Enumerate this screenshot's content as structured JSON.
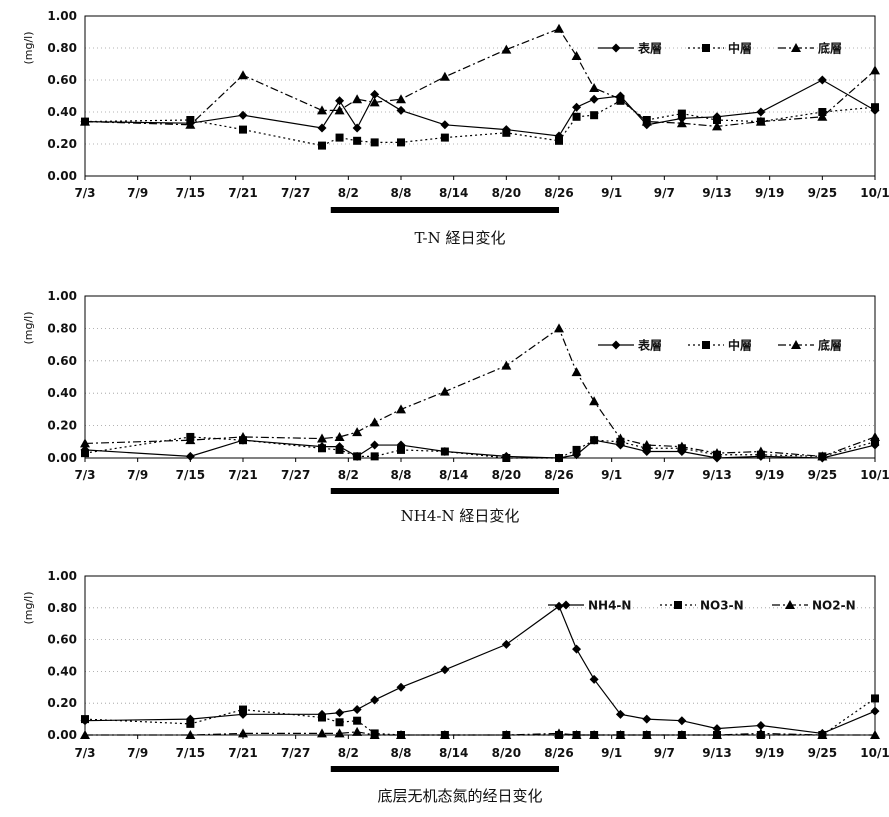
{
  "x_labels": [
    "7/3",
    "7/9",
    "7/15",
    "7/21",
    "7/27",
    "8/2",
    "8/8",
    "8/14",
    "8/20",
    "8/26",
    "9/1",
    "9/7",
    "9/13",
    "9/19",
    "9/25",
    "10/1"
  ],
  "chart_data": [
    {
      "type": "line",
      "caption": "T-N 経日変化",
      "ylabel": "(mg/l)",
      "ylim": [
        0,
        1.0
      ],
      "yticks": [
        "0.00",
        "0.20",
        "0.40",
        "0.60",
        "0.80",
        "1.00"
      ],
      "legend_position": "top-right",
      "highlight_period": [
        "7/31",
        "8/26"
      ],
      "series": [
        {
          "name": "表層",
          "style": "solid",
          "marker": "diamond",
          "points": [
            [
              "7/3",
              0.34
            ],
            [
              "7/15",
              0.33
            ],
            [
              "7/21",
              0.38
            ],
            [
              "7/30",
              0.3
            ],
            [
              "8/1",
              0.47
            ],
            [
              "8/3",
              0.3
            ],
            [
              "8/5",
              0.51
            ],
            [
              "8/8",
              0.41
            ],
            [
              "8/13",
              0.32
            ],
            [
              "8/20",
              0.29
            ],
            [
              "8/26",
              0.25
            ],
            [
              "8/28",
              0.43
            ],
            [
              "8/30",
              0.48
            ],
            [
              "9/2",
              0.5
            ],
            [
              "9/5",
              0.32
            ],
            [
              "9/9",
              0.36
            ],
            [
              "9/13",
              0.37
            ],
            [
              "9/18",
              0.4
            ],
            [
              "9/25",
              0.6
            ],
            [
              "10/1",
              0.41
            ]
          ]
        },
        {
          "name": "中層",
          "style": "dotted",
          "marker": "square",
          "points": [
            [
              "7/3",
              0.34
            ],
            [
              "7/15",
              0.35
            ],
            [
              "7/21",
              0.29
            ],
            [
              "7/30",
              0.19
            ],
            [
              "8/1",
              0.24
            ],
            [
              "8/3",
              0.22
            ],
            [
              "8/5",
              0.21
            ],
            [
              "8/8",
              0.21
            ],
            [
              "8/13",
              0.24
            ],
            [
              "8/20",
              0.27
            ],
            [
              "8/26",
              0.22
            ],
            [
              "8/28",
              0.37
            ],
            [
              "8/30",
              0.38
            ],
            [
              "9/2",
              0.47
            ],
            [
              "9/5",
              0.35
            ],
            [
              "9/9",
              0.39
            ],
            [
              "9/13",
              0.35
            ],
            [
              "9/18",
              0.34
            ],
            [
              "9/25",
              0.4
            ],
            [
              "10/1",
              0.43
            ]
          ]
        },
        {
          "name": "底層",
          "style": "dashdot",
          "marker": "triangle",
          "points": [
            [
              "7/3",
              0.34
            ],
            [
              "7/15",
              0.32
            ],
            [
              "7/21",
              0.63
            ],
            [
              "7/30",
              0.41
            ],
            [
              "8/1",
              0.41
            ],
            [
              "8/3",
              0.48
            ],
            [
              "8/5",
              0.46
            ],
            [
              "8/8",
              0.48
            ],
            [
              "8/13",
              0.62
            ],
            [
              "8/20",
              0.79
            ],
            [
              "8/26",
              0.92
            ],
            [
              "8/28",
              0.75
            ],
            [
              "8/30",
              0.55
            ],
            [
              "9/2",
              0.48
            ],
            [
              "9/5",
              0.34
            ],
            [
              "9/9",
              0.33
            ],
            [
              "9/13",
              0.31
            ],
            [
              "9/18",
              0.34
            ],
            [
              "9/25",
              0.37
            ],
            [
              "10/1",
              0.66
            ]
          ]
        }
      ]
    },
    {
      "type": "line",
      "caption": "NH4-N 経日変化",
      "ylabel": "(mg/l)",
      "ylim": [
        0,
        1.0
      ],
      "yticks": [
        "0.00",
        "0.20",
        "0.40",
        "0.60",
        "0.80",
        "1.00"
      ],
      "legend_position": "top-right",
      "highlight_period": [
        "7/31",
        "8/26"
      ],
      "series": [
        {
          "name": "表層",
          "style": "solid",
          "marker": "diamond",
          "points": [
            [
              "7/3",
              0.05
            ],
            [
              "7/15",
              0.01
            ],
            [
              "7/21",
              0.11
            ],
            [
              "7/30",
              0.07
            ],
            [
              "8/1",
              0.07
            ],
            [
              "8/3",
              0.01
            ],
            [
              "8/5",
              0.08
            ],
            [
              "8/8",
              0.08
            ],
            [
              "8/13",
              0.04
            ],
            [
              "8/20",
              0.01
            ],
            [
              "8/26",
              0.0
            ],
            [
              "8/28",
              0.02
            ],
            [
              "8/30",
              0.11
            ],
            [
              "9/2",
              0.08
            ],
            [
              "9/5",
              0.04
            ],
            [
              "9/9",
              0.04
            ],
            [
              "9/13",
              0.0
            ],
            [
              "9/18",
              0.01
            ],
            [
              "9/25",
              0.0
            ],
            [
              "10/1",
              0.08
            ]
          ]
        },
        {
          "name": "中層",
          "style": "dotted",
          "marker": "square",
          "points": [
            [
              "7/3",
              0.03
            ],
            [
              "7/15",
              0.13
            ],
            [
              "7/21",
              0.11
            ],
            [
              "7/30",
              0.06
            ],
            [
              "8/1",
              0.05
            ],
            [
              "8/3",
              0.01
            ],
            [
              "8/5",
              0.01
            ],
            [
              "8/8",
              0.05
            ],
            [
              "8/13",
              0.04
            ],
            [
              "8/20",
              0.0
            ],
            [
              "8/26",
              0.0
            ],
            [
              "8/28",
              0.05
            ],
            [
              "8/30",
              0.11
            ],
            [
              "9/2",
              0.1
            ],
            [
              "9/5",
              0.06
            ],
            [
              "9/9",
              0.06
            ],
            [
              "9/13",
              0.02
            ],
            [
              "9/18",
              0.02
            ],
            [
              "9/25",
              0.01
            ],
            [
              "10/1",
              0.1
            ]
          ]
        },
        {
          "name": "底層",
          "style": "dashdot",
          "marker": "triangle",
          "points": [
            [
              "7/3",
              0.09
            ],
            [
              "7/15",
              0.11
            ],
            [
              "7/21",
              0.13
            ],
            [
              "7/30",
              0.12
            ],
            [
              "8/1",
              0.13
            ],
            [
              "8/3",
              0.16
            ],
            [
              "8/5",
              0.22
            ],
            [
              "8/8",
              0.3
            ],
            [
              "8/13",
              0.41
            ],
            [
              "8/20",
              0.57
            ],
            [
              "8/26",
              0.8
            ],
            [
              "8/28",
              0.53
            ],
            [
              "8/30",
              0.35
            ],
            [
              "9/2",
              0.12
            ],
            [
              "9/5",
              0.08
            ],
            [
              "9/9",
              0.07
            ],
            [
              "9/13",
              0.03
            ],
            [
              "9/18",
              0.04
            ],
            [
              "9/25",
              0.01
            ],
            [
              "10/1",
              0.13
            ]
          ]
        }
      ]
    },
    {
      "type": "line",
      "caption": "底层无机态氮的经日变化",
      "ylabel": "(mg/l)",
      "ylim": [
        0,
        1.0
      ],
      "yticks": [
        "0.00",
        "0.20",
        "0.40",
        "0.60",
        "0.80",
        "1.00"
      ],
      "legend_position": "top-right",
      "highlight_period": [
        "7/31",
        "8/26"
      ],
      "series": [
        {
          "name": "NH4-N",
          "style": "solid",
          "marker": "diamond",
          "points": [
            [
              "7/3",
              0.09
            ],
            [
              "7/15",
              0.1
            ],
            [
              "7/21",
              0.13
            ],
            [
              "7/30",
              0.13
            ],
            [
              "8/1",
              0.14
            ],
            [
              "8/3",
              0.16
            ],
            [
              "8/5",
              0.22
            ],
            [
              "8/8",
              0.3
            ],
            [
              "8/13",
              0.41
            ],
            [
              "8/20",
              0.57
            ],
            [
              "8/26",
              0.81
            ],
            [
              "8/28",
              0.54
            ],
            [
              "8/30",
              0.35
            ],
            [
              "9/2",
              0.13
            ],
            [
              "9/5",
              0.1
            ],
            [
              "9/9",
              0.09
            ],
            [
              "9/13",
              0.04
            ],
            [
              "9/18",
              0.06
            ],
            [
              "9/25",
              0.01
            ],
            [
              "10/1",
              0.15
            ]
          ]
        },
        {
          "name": "NO3-N",
          "style": "dotted",
          "marker": "square",
          "points": [
            [
              "7/3",
              0.1
            ],
            [
              "7/15",
              0.07
            ],
            [
              "7/21",
              0.16
            ],
            [
              "7/30",
              0.11
            ],
            [
              "8/1",
              0.08
            ],
            [
              "8/3",
              0.09
            ],
            [
              "8/5",
              0.01
            ],
            [
              "8/8",
              0.0
            ],
            [
              "8/13",
              0.0
            ],
            [
              "8/20",
              0.0
            ],
            [
              "8/26",
              0.0
            ],
            [
              "8/28",
              0.0
            ],
            [
              "8/30",
              0.0
            ],
            [
              "9/2",
              0.0
            ],
            [
              "9/5",
              0.0
            ],
            [
              "9/9",
              0.0
            ],
            [
              "9/13",
              0.0
            ],
            [
              "9/18",
              0.0
            ],
            [
              "9/25",
              0.0
            ],
            [
              "10/1",
              0.23
            ]
          ]
        },
        {
          "name": "NO2-N",
          "style": "dashdot",
          "marker": "triangle",
          "points": [
            [
              "7/3",
              0.0
            ],
            [
              "7/15",
              0.0
            ],
            [
              "7/21",
              0.01
            ],
            [
              "7/30",
              0.01
            ],
            [
              "8/1",
              0.01
            ],
            [
              "8/3",
              0.02
            ],
            [
              "8/5",
              0.0
            ],
            [
              "8/8",
              0.0
            ],
            [
              "8/13",
              0.0
            ],
            [
              "8/20",
              0.0
            ],
            [
              "8/26",
              0.01
            ],
            [
              "8/28",
              0.0
            ],
            [
              "8/30",
              0.0
            ],
            [
              "9/2",
              0.0
            ],
            [
              "9/5",
              0.0
            ],
            [
              "9/9",
              0.0
            ],
            [
              "9/13",
              0.0
            ],
            [
              "9/18",
              0.01
            ],
            [
              "9/25",
              0.0
            ],
            [
              "10/1",
              0.0
            ]
          ]
        }
      ]
    }
  ]
}
